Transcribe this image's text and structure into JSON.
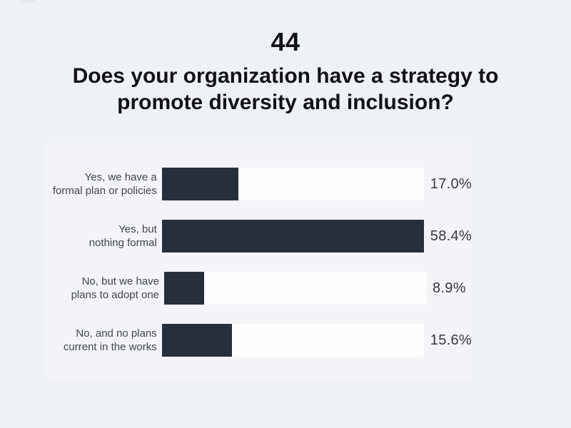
{
  "page": {
    "background_color": "#eef1f5",
    "panel_color": "#f2f4f8"
  },
  "header": {
    "slide_number": "44",
    "title": "Does your organization have a strategy to promote diversity and inclusion?",
    "title_lines": [
      "Does your organization have a strategy to",
      "promote diversity and inclusion?"
    ]
  },
  "chart_data": {
    "type": "bar",
    "orientation": "horizontal",
    "title": "Does your organization have a strategy to promote diversity and inclusion?",
    "categories": [
      "Yes, we have a formal plan or policies",
      "Yes, but nothing formal",
      "No, but we have plans to adopt one",
      "No, and no plans current in the works"
    ],
    "category_lines": [
      [
        "Yes, we have a",
        "formal plan or policies"
      ],
      [
        "Yes, but",
        "nothing formal"
      ],
      [
        "No, but we have",
        "plans to adopt one"
      ],
      [
        "No, and no plans",
        "current in the works"
      ]
    ],
    "values": [
      17.0,
      58.4,
      8.9,
      15.6
    ],
    "value_labels": [
      "17.0%",
      "58.4%",
      "8.9%",
      "15.6%"
    ],
    "xlim": [
      0,
      58.4
    ],
    "bar_color": "#26303c",
    "track_color": "#fefefe",
    "grid": false,
    "legend": false
  }
}
